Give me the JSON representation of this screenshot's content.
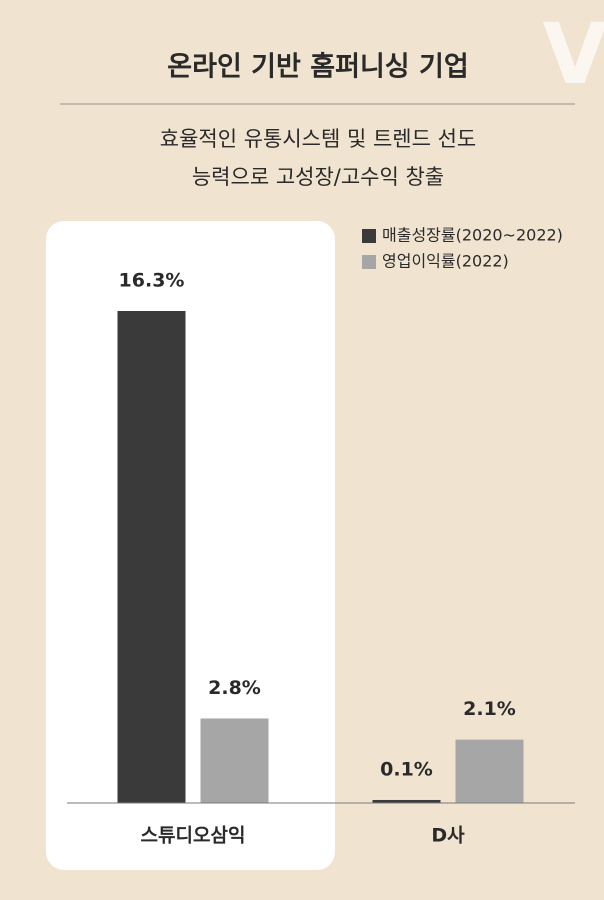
{
  "chart_data": {
    "type": "bar",
    "logo": "V",
    "title": "온라인 기반 홈퍼니싱 기업",
    "subtitle": [
      "효율적인 유통시스템 및 트렌드 선도",
      "능력으로 고성장/고수익 창출"
    ],
    "categories": [
      "스튜디오삼익",
      "D사"
    ],
    "series": [
      {
        "name": "매출성장률(2020~2022)",
        "color": "#3a3a3a",
        "values": [
          16.3,
          0.1
        ],
        "value_labels": [
          "16.3%",
          "0.1%"
        ]
      },
      {
        "name": "영업이익률(2022)",
        "color": "#a6a6a6",
        "values": [
          2.8,
          2.1
        ],
        "value_labels": [
          "2.8%",
          "2.1%"
        ]
      }
    ],
    "legend": "top-right"
  }
}
